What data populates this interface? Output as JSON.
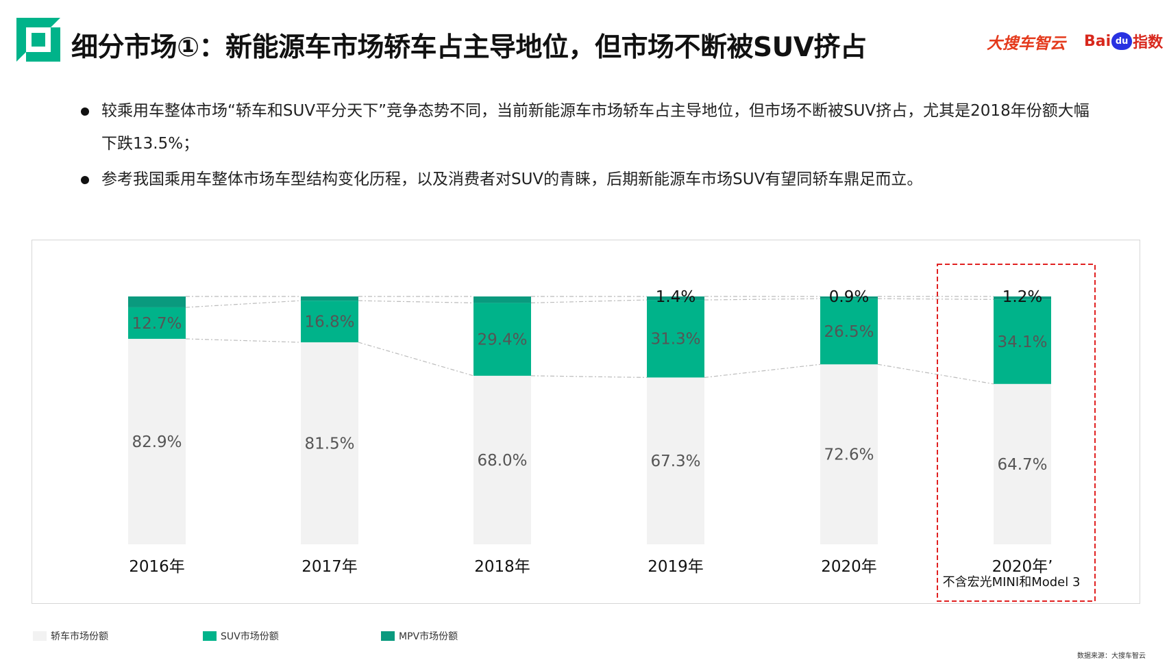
{
  "title": "细分市场①：新能源车市场轿车占主导地位，但市场不断被SUV挤占",
  "brand": {
    "sohu": "大搜车智云",
    "baidu_a": "Bai",
    "baidu_du": "du",
    "baidu_b": "指数"
  },
  "bullets": [
    "较乘用车整体市场“轿车和SUV平分天下”竞争态势不同，当前新能源车市场轿车占主导地位，但市场不断被SUV挤占，尤其是2018年份额大幅下跌13.5%；",
    "参考我国乘用车整体市场车型结构变化历程，以及消费者对SUV的青睐，后期新能源车市场SUV有望同轿车鼎足而立。"
  ],
  "source": "数据来源：大搜车智云",
  "colors": {
    "sedan": "#f2f2f2",
    "suv": "#00b38a",
    "mpv": "#0a9a7e",
    "highlight": "#e02020",
    "accent": "#00b38a"
  },
  "chart_data": {
    "type": "bar",
    "stacked": true,
    "categories": [
      "2016年",
      "2017年",
      "2018年",
      "2019年",
      "2020年",
      "2020年’"
    ],
    "category_notes": [
      "",
      "",
      "",
      "",
      "",
      "不含宏光MINI和Model 3"
    ],
    "series": [
      {
        "name": "轿车市场份额",
        "values": [
          82.9,
          81.5,
          68.0,
          67.3,
          72.6,
          64.7
        ],
        "labels": [
          "82.9%",
          "81.5%",
          "68.0%",
          "67.3%",
          "72.6%",
          "64.7%"
        ]
      },
      {
        "name": "SUV市场份额",
        "values": [
          12.7,
          16.8,
          29.4,
          31.3,
          26.5,
          34.1
        ],
        "labels": [
          "12.7%",
          "16.8%",
          "29.4%",
          "31.3%",
          "26.5%",
          "34.1%"
        ]
      },
      {
        "name": "MPV市场份额",
        "values": [
          4.4,
          1.7,
          2.6,
          1.4,
          0.9,
          1.2
        ],
        "labels": [
          "",
          "",
          "",
          "1.4%",
          "0.9%",
          "1.2%"
        ]
      }
    ],
    "ylim": [
      0,
      100
    ],
    "highlight_category": 5,
    "legend_position": "bottom-left"
  }
}
